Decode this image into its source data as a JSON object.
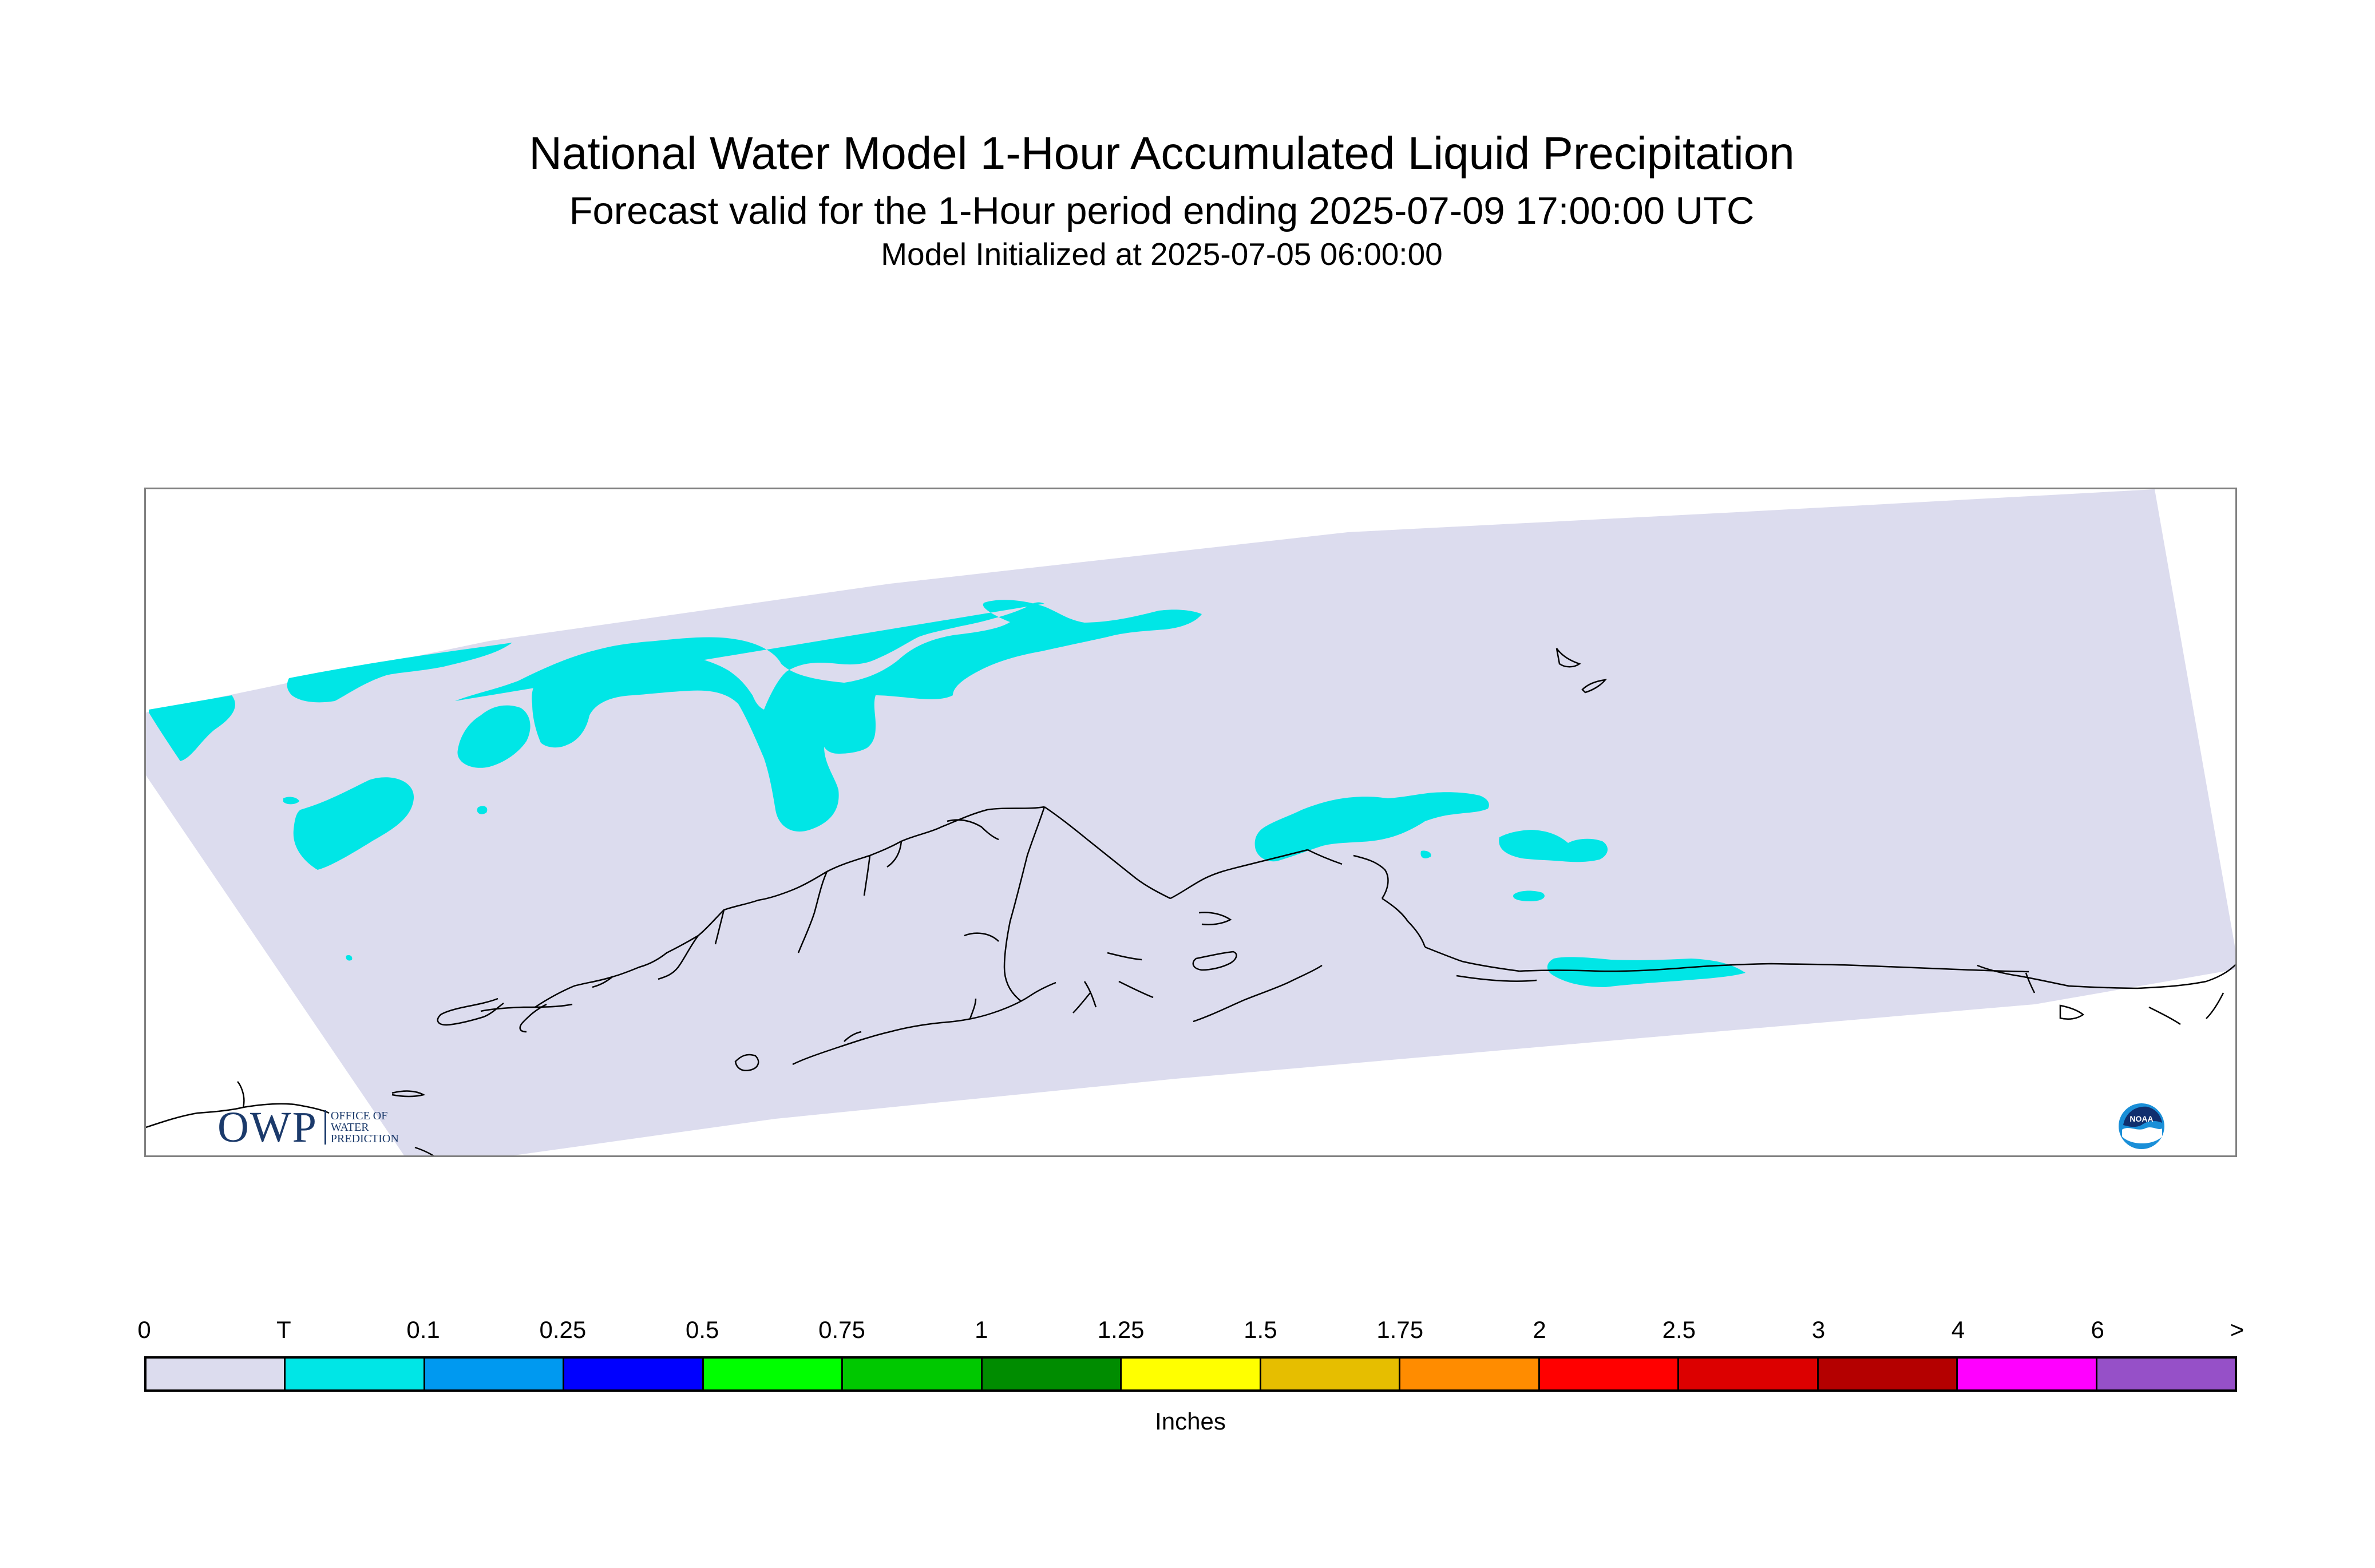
{
  "header": {
    "title": "National Water Model 1-Hour Accumulated Liquid Precipitation",
    "subtitle": "Forecast valid for the 1-Hour period ending 2025-07-09 17:00:00 UTC",
    "init_line": "Model Initialized at 2025-07-05 06:00:00"
  },
  "map": {
    "region": "Alaska",
    "domain_fill_color": "#dcdcee",
    "precip_fill_color": "#00e6e6",
    "coastline_color": "#000000"
  },
  "legend": {
    "units": "Inches",
    "labels": [
      "0",
      "T",
      "0.1",
      "0.25",
      "0.5",
      "0.75",
      "1",
      "1.25",
      "1.5",
      "1.75",
      "2",
      "2.5",
      "3",
      "4",
      "6",
      ">"
    ],
    "colors": [
      "#dcdcee",
      "#00e6e6",
      "#0099f0",
      "#0000ff",
      "#00ff00",
      "#00c800",
      "#008c00",
      "#ffff00",
      "#e6be00",
      "#ff8c00",
      "#ff0000",
      "#dc0000",
      "#b40000",
      "#ff00ff",
      "#9650c8"
    ]
  },
  "logos": {
    "owp_letters": "OWP",
    "owp_sub": [
      "OFFICE OF",
      "WATER",
      "PREDICTION"
    ],
    "noaa_text": "NOAA"
  }
}
